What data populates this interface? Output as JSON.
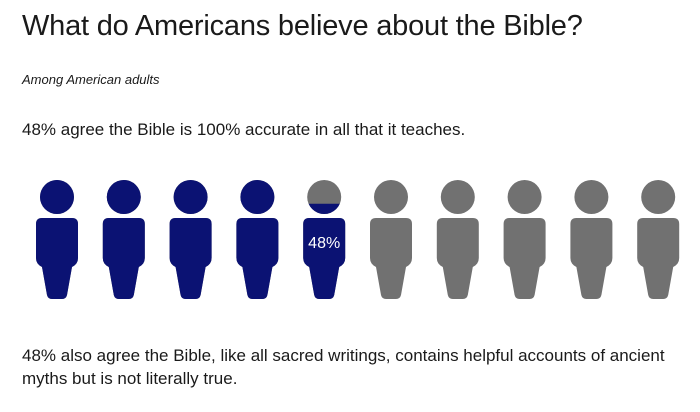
{
  "title": "What do Americans believe about the Bible?",
  "subtitle": "Among American adults",
  "statement_1": "48% agree the Bible is 100% accurate in all that it teaches.",
  "statement_2": "48% also agree the Bible, like all sacred writings, contains helpful accounts of ancient myths but is not literally true.",
  "chart_data": {
    "type": "pictogram",
    "icon": "person-icon",
    "icon_count": 10,
    "value_percent": 48,
    "data_label": "48%",
    "colors": {
      "filled": "#0b1273",
      "empty": "#717171",
      "label": "#ffffff"
    }
  }
}
